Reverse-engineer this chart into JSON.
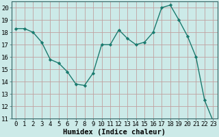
{
  "x": [
    0,
    1,
    2,
    3,
    4,
    5,
    6,
    7,
    8,
    9,
    10,
    11,
    12,
    13,
    14,
    15,
    16,
    17,
    18,
    19,
    20,
    21,
    22,
    23
  ],
  "y": [
    18.3,
    18.3,
    18.0,
    17.2,
    15.8,
    15.5,
    14.8,
    13.8,
    13.7,
    14.7,
    17.0,
    17.0,
    18.2,
    17.5,
    17.0,
    17.2,
    18.0,
    20.0,
    20.2,
    19.0,
    17.7,
    16.0,
    12.5,
    10.8
  ],
  "line_color": "#1a7a6e",
  "marker": "D",
  "marker_size": 2.2,
  "linewidth": 1.0,
  "bg_color": "#cceae8",
  "grid_color": "#c0a0a0",
  "xlabel": "Humidex (Indice chaleur)",
  "xlabel_fontsize": 7.5,
  "ylim": [
    11,
    20.5
  ],
  "xlim": [
    -0.5,
    23.5
  ],
  "yticks": [
    11,
    12,
    13,
    14,
    15,
    16,
    17,
    18,
    19,
    20
  ],
  "xticks": [
    0,
    1,
    2,
    3,
    4,
    5,
    6,
    7,
    8,
    9,
    10,
    11,
    12,
    13,
    14,
    15,
    16,
    17,
    18,
    19,
    20,
    21,
    22,
    23
  ],
  "tick_fontsize": 6.5,
  "spine_color": "#336666"
}
